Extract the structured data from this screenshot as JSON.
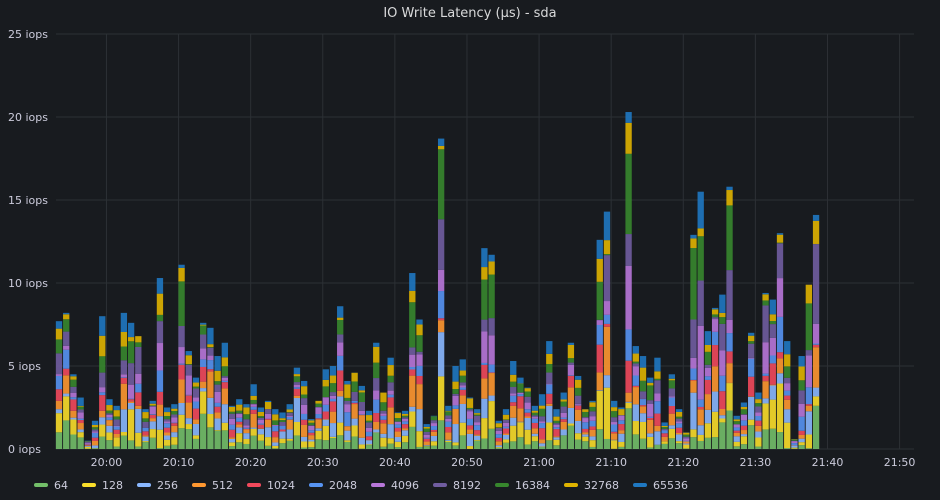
{
  "panel": {
    "title": "IO Write Latency (µs) - sda"
  },
  "chart_data": {
    "type": "bar",
    "stacked": true,
    "title": "IO Write Latency (µs) - sda",
    "y_unit": "iops",
    "ylim": [
      0,
      25
    ],
    "y_ticks": [
      "0 iops",
      "5 iops",
      "10 iops",
      "15 iops",
      "20 iops",
      "25 iops"
    ],
    "y_tick_values": [
      0,
      5,
      10,
      15,
      20,
      25
    ],
    "x_ticks": [
      "20:00",
      "20:10",
      "20:20",
      "20:30",
      "20:40",
      "20:50",
      "21:00",
      "21:10",
      "21:20",
      "21:30",
      "21:40",
      "21:50"
    ],
    "x_start": "19:53",
    "x_end": "21:52",
    "grid": true,
    "legend_position": "bottom",
    "series_names": [
      "64",
      "128",
      "256",
      "512",
      "1024",
      "2048",
      "4096",
      "8192",
      "16384",
      "32768",
      "65536"
    ],
    "series_colors": [
      "#73bf69",
      "#fade2a",
      "#8ab8ff",
      "#ff9830",
      "#f2495c",
      "#5794f2",
      "#b877d9",
      "#705da0",
      "#37872d",
      "#e0b400",
      "#1f78c1"
    ],
    "time_step_minutes": 1,
    "totals": [
      7.7,
      8.2,
      4.5,
      3.1,
      0.5,
      1.7,
      8.0,
      3.0,
      2.6,
      8.2,
      7.6,
      6.8,
      2.4,
      2.9,
      10.3,
      2.5,
      2.7,
      11.1,
      5.9,
      4.3,
      7.6,
      7.3,
      5.6,
      6.4,
      2.6,
      3.0,
      2.7,
      3.9,
      2.5,
      2.9,
      2.4,
      2.2,
      2.7,
      4.9,
      4.1,
      1.8,
      2.9,
      4.8,
      5.0,
      8.6,
      4.1,
      4.6,
      3.8,
      2.3,
      6.4,
      3.4,
      5.5,
      2.2,
      2.3,
      10.6,
      7.8,
      1.5,
      2.0,
      18.7,
      2.6,
      5.0,
      5.4,
      3.1,
      2.4,
      12.1,
      11.7,
      1.7,
      2.4,
      5.3,
      4.3,
      3.7,
      2.6,
      3.3,
      6.5,
      2.4,
      3.4,
      6.4,
      4.4,
      2.4,
      2.9,
      12.6,
      14.3,
      2.9,
      2.5,
      20.3,
      6.2,
      5.6,
      4.3,
      5.5,
      1.6,
      4.5,
      2.4,
      1.0,
      12.9,
      15.5,
      7.1,
      8.5,
      9.3,
      15.8,
      2.0,
      2.8,
      7.0,
      3.4,
      9.4,
      9.0,
      13.0,
      6.5,
      0.6,
      5.6,
      9.9,
      14.1
    ]
  }
}
